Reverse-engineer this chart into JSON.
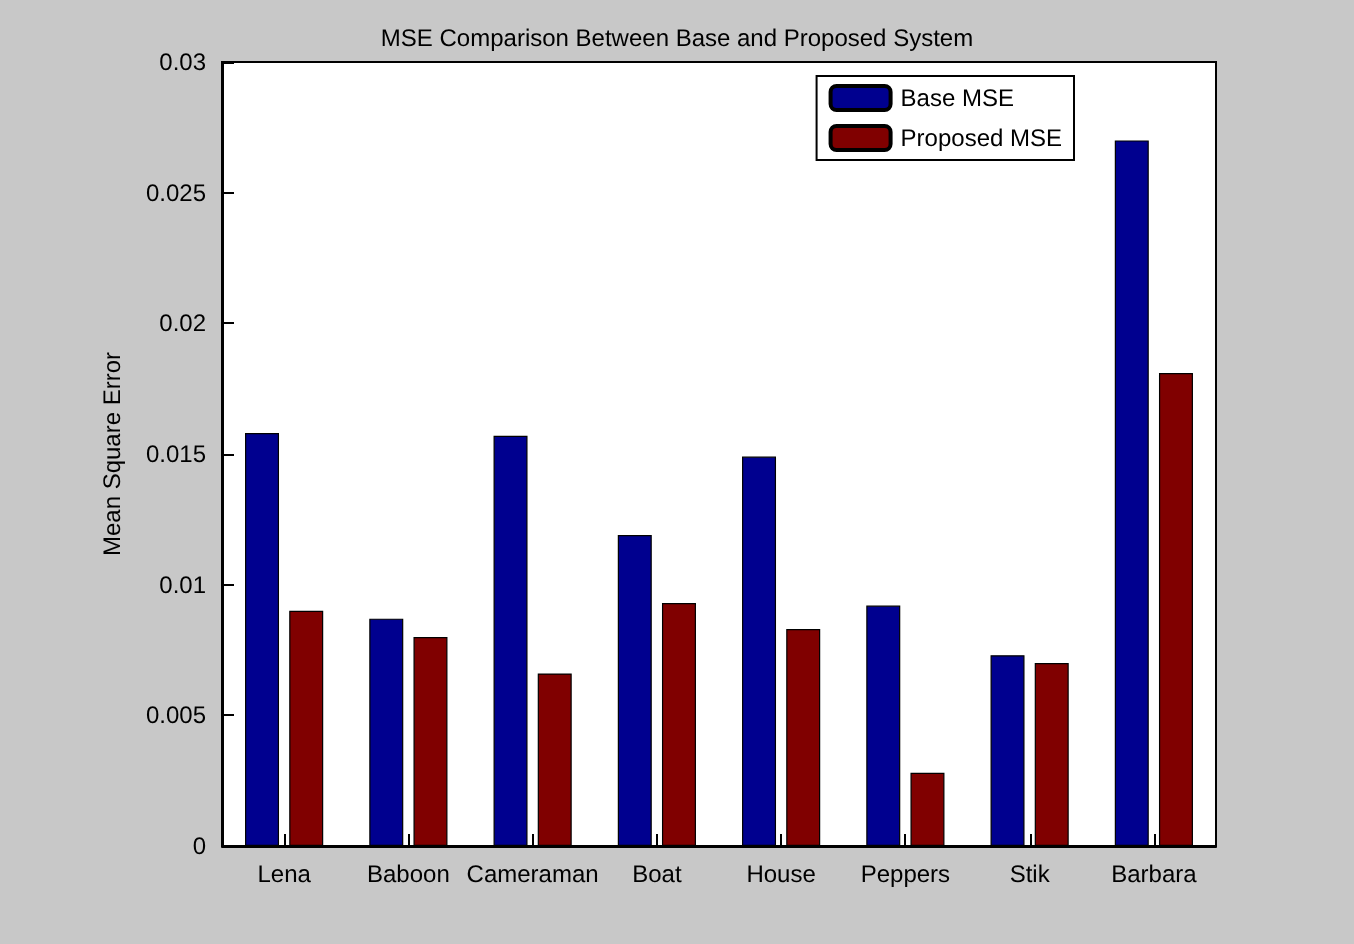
{
  "chart_data": {
    "type": "bar",
    "title": "MSE Comparison Between Base and Proposed System",
    "ylabel": "Mean Square Error",
    "categories": [
      "Lena",
      "Baboon",
      "Cameraman",
      "Boat",
      "House",
      "Peppers",
      "Stik",
      "Barbara"
    ],
    "series": [
      {
        "name": "Base MSE",
        "color": "#00008f",
        "values": [
          0.0158,
          0.0087,
          0.0157,
          0.0119,
          0.0149,
          0.0092,
          0.0073,
          0.027
        ]
      },
      {
        "name": "Proposed MSE",
        "color": "#800000",
        "values": [
          0.009,
          0.008,
          0.0066,
          0.0093,
          0.0083,
          0.0028,
          0.007,
          0.0181
        ]
      }
    ],
    "ylim": [
      0,
      0.03
    ],
    "yticks": [
      0,
      0.005,
      0.01,
      0.015,
      0.02,
      0.025,
      0.03
    ],
    "grid": false,
    "legend": "top right"
  }
}
